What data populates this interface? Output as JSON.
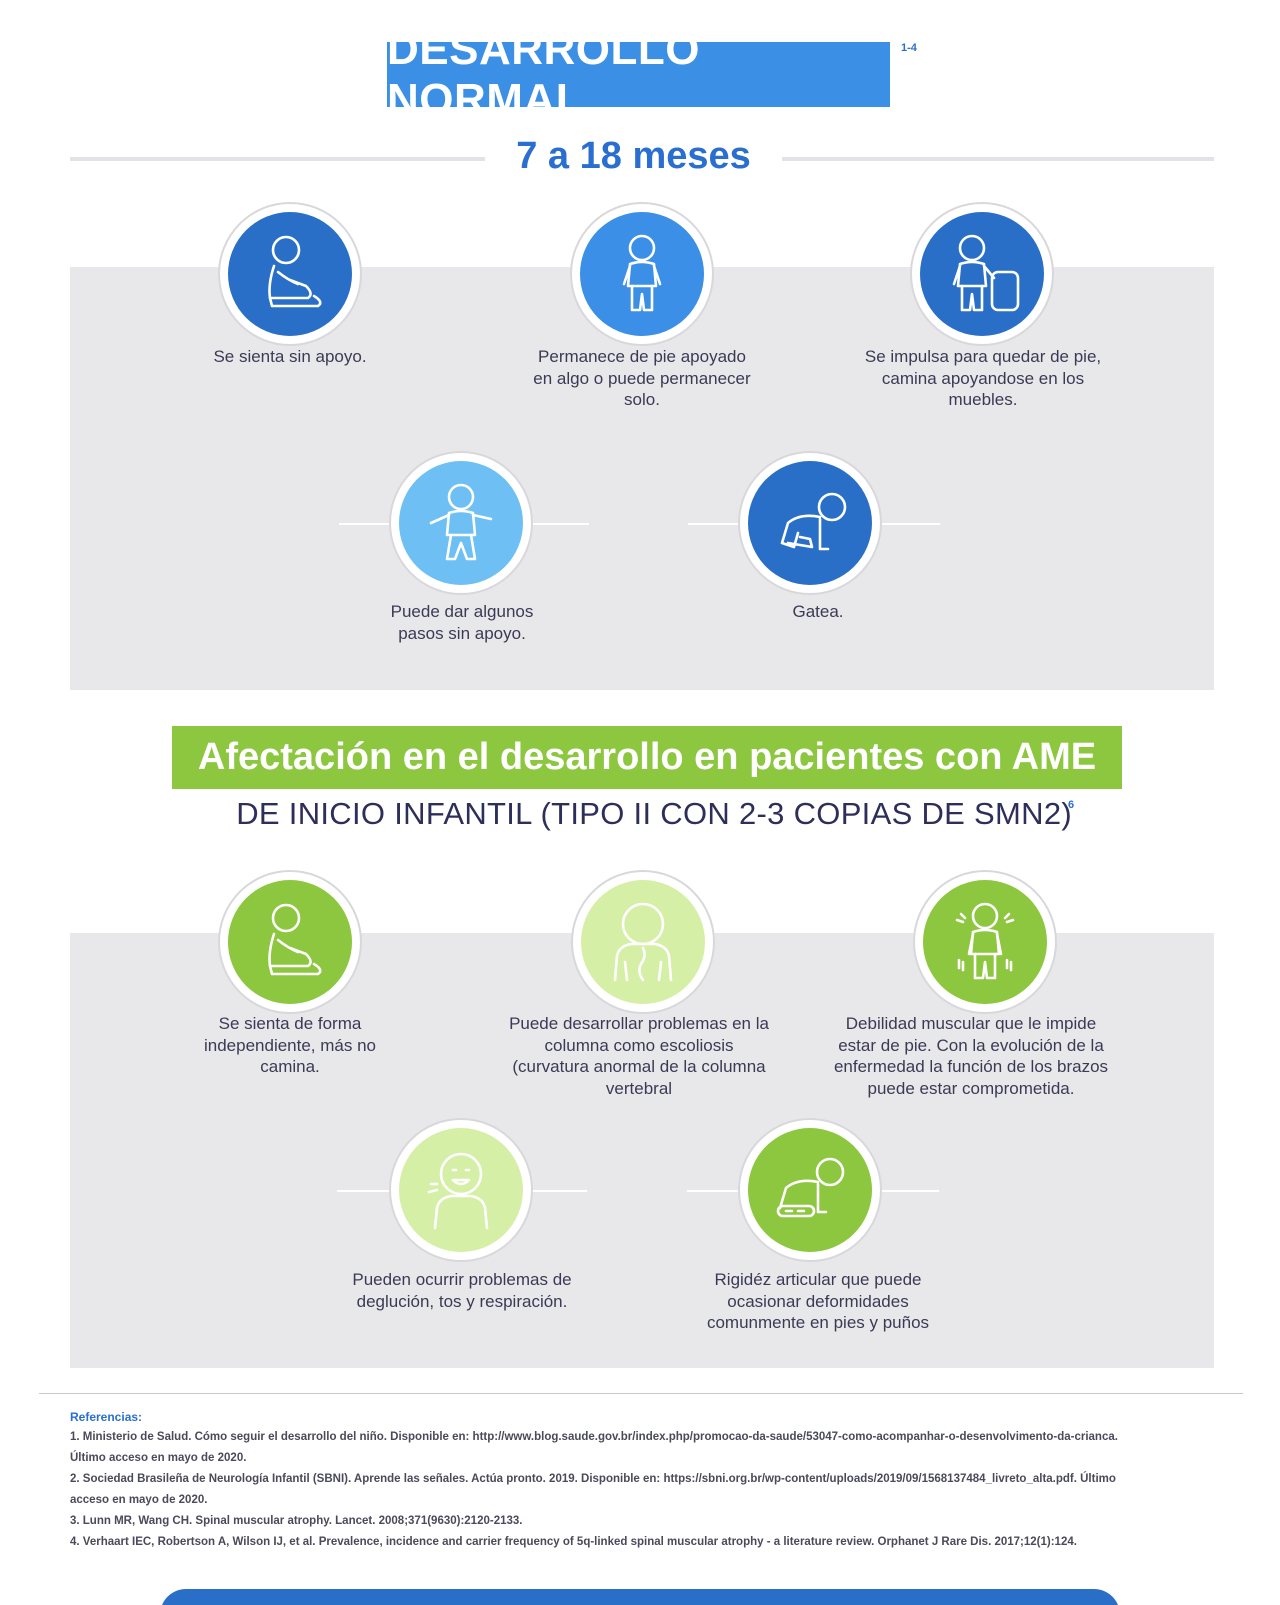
{
  "header": {
    "title": "DESARROLLO NORMAL",
    "title_ref": "1-4",
    "age_range": "7 a 18 meses"
  },
  "normal": [
    {
      "label": "Se sienta sin apoyo.",
      "icon": "sitting-baby-icon",
      "color": "#2a6fc7"
    },
    {
      "label": "Permanece de pie apoyado en algo o puede permanecer solo.",
      "icon": "standing-baby-icon",
      "color": "#3c8fe6"
    },
    {
      "label": "Se impulsa para quedar de pie, camina apoyandose en los muebles.",
      "icon": "baby-holding-furniture-icon",
      "color": "#2a6fc7"
    },
    {
      "label": "Puede dar algunos pasos sin apoyo.",
      "icon": "walking-baby-icon",
      "color": "#6ec0f4"
    },
    {
      "label": "Gatea.",
      "icon": "crawling-baby-icon",
      "color": "#2a6fc7"
    }
  ],
  "ame": {
    "banner": "Afectación en el desarrollo en pacientes con AME",
    "subtitle": "DE INICIO INFANTIL (TIPO II CON 2-3 COPIAS DE SMN2)",
    "subtitle_ref": "6",
    "items": [
      {
        "label": "Se sienta de forma independiente,  más no camina.",
        "icon": "sitting-baby-icon",
        "color": "#8dc63f"
      },
      {
        "label": "Puede desarrollar problemas en la columna como escoliosis (curvatura anormal de la columna vertebral",
        "icon": "spine-baby-icon",
        "color": "#d6efa6"
      },
      {
        "label": "Debilidad muscular que le impide estar de pie. Con la evolución de la enfermedad la función de los brazos puede estar comprometida.",
        "icon": "weak-standing-baby-icon",
        "color": "#8dc63f"
      },
      {
        "label": "Pueden ocurrir problemas de deglución, tos y respiración.",
        "icon": "coughing-baby-icon",
        "color": "#d6efa6"
      },
      {
        "label": "Rigidéz articular que puede ocasionar deformidades comunmente en pies y puños",
        "icon": "stiff-crawling-baby-icon",
        "color": "#8dc63f"
      }
    ]
  },
  "references": {
    "title": "Referencias:",
    "lines": [
      "1. Ministerio de Salud. Cómo seguir el desarrollo del niño. Disponible en: http://www.blog.saude.gov.br/index.php/promocao-da-saude/53047-como-acompanhar-o-desenvolvimento-da-crianca.",
      "Último acceso en mayo de 2020.",
      "2. Sociedad Brasileña de Neurología Infantil (SBNI). Aprende las señales. Actúa pronto. 2019. Disponible en: https://sbni.org.br/wp-content/uploads/2019/09/1568137484_livreto_alta.pdf. Último",
      "acceso en mayo de 2020.",
      "3. Lunn MR, Wang CH. Spinal muscular atrophy. Lancet. 2008;371(9630):2120-2133.",
      "4. Verhaart IEC, Robertson A, Wilson IJ, et al. Prevalence, incidence and carrier frequency of 5q-linked spinal muscular atrophy - a literature review. Orphanet J Rare Dis. 2017;12(1):124."
    ]
  }
}
